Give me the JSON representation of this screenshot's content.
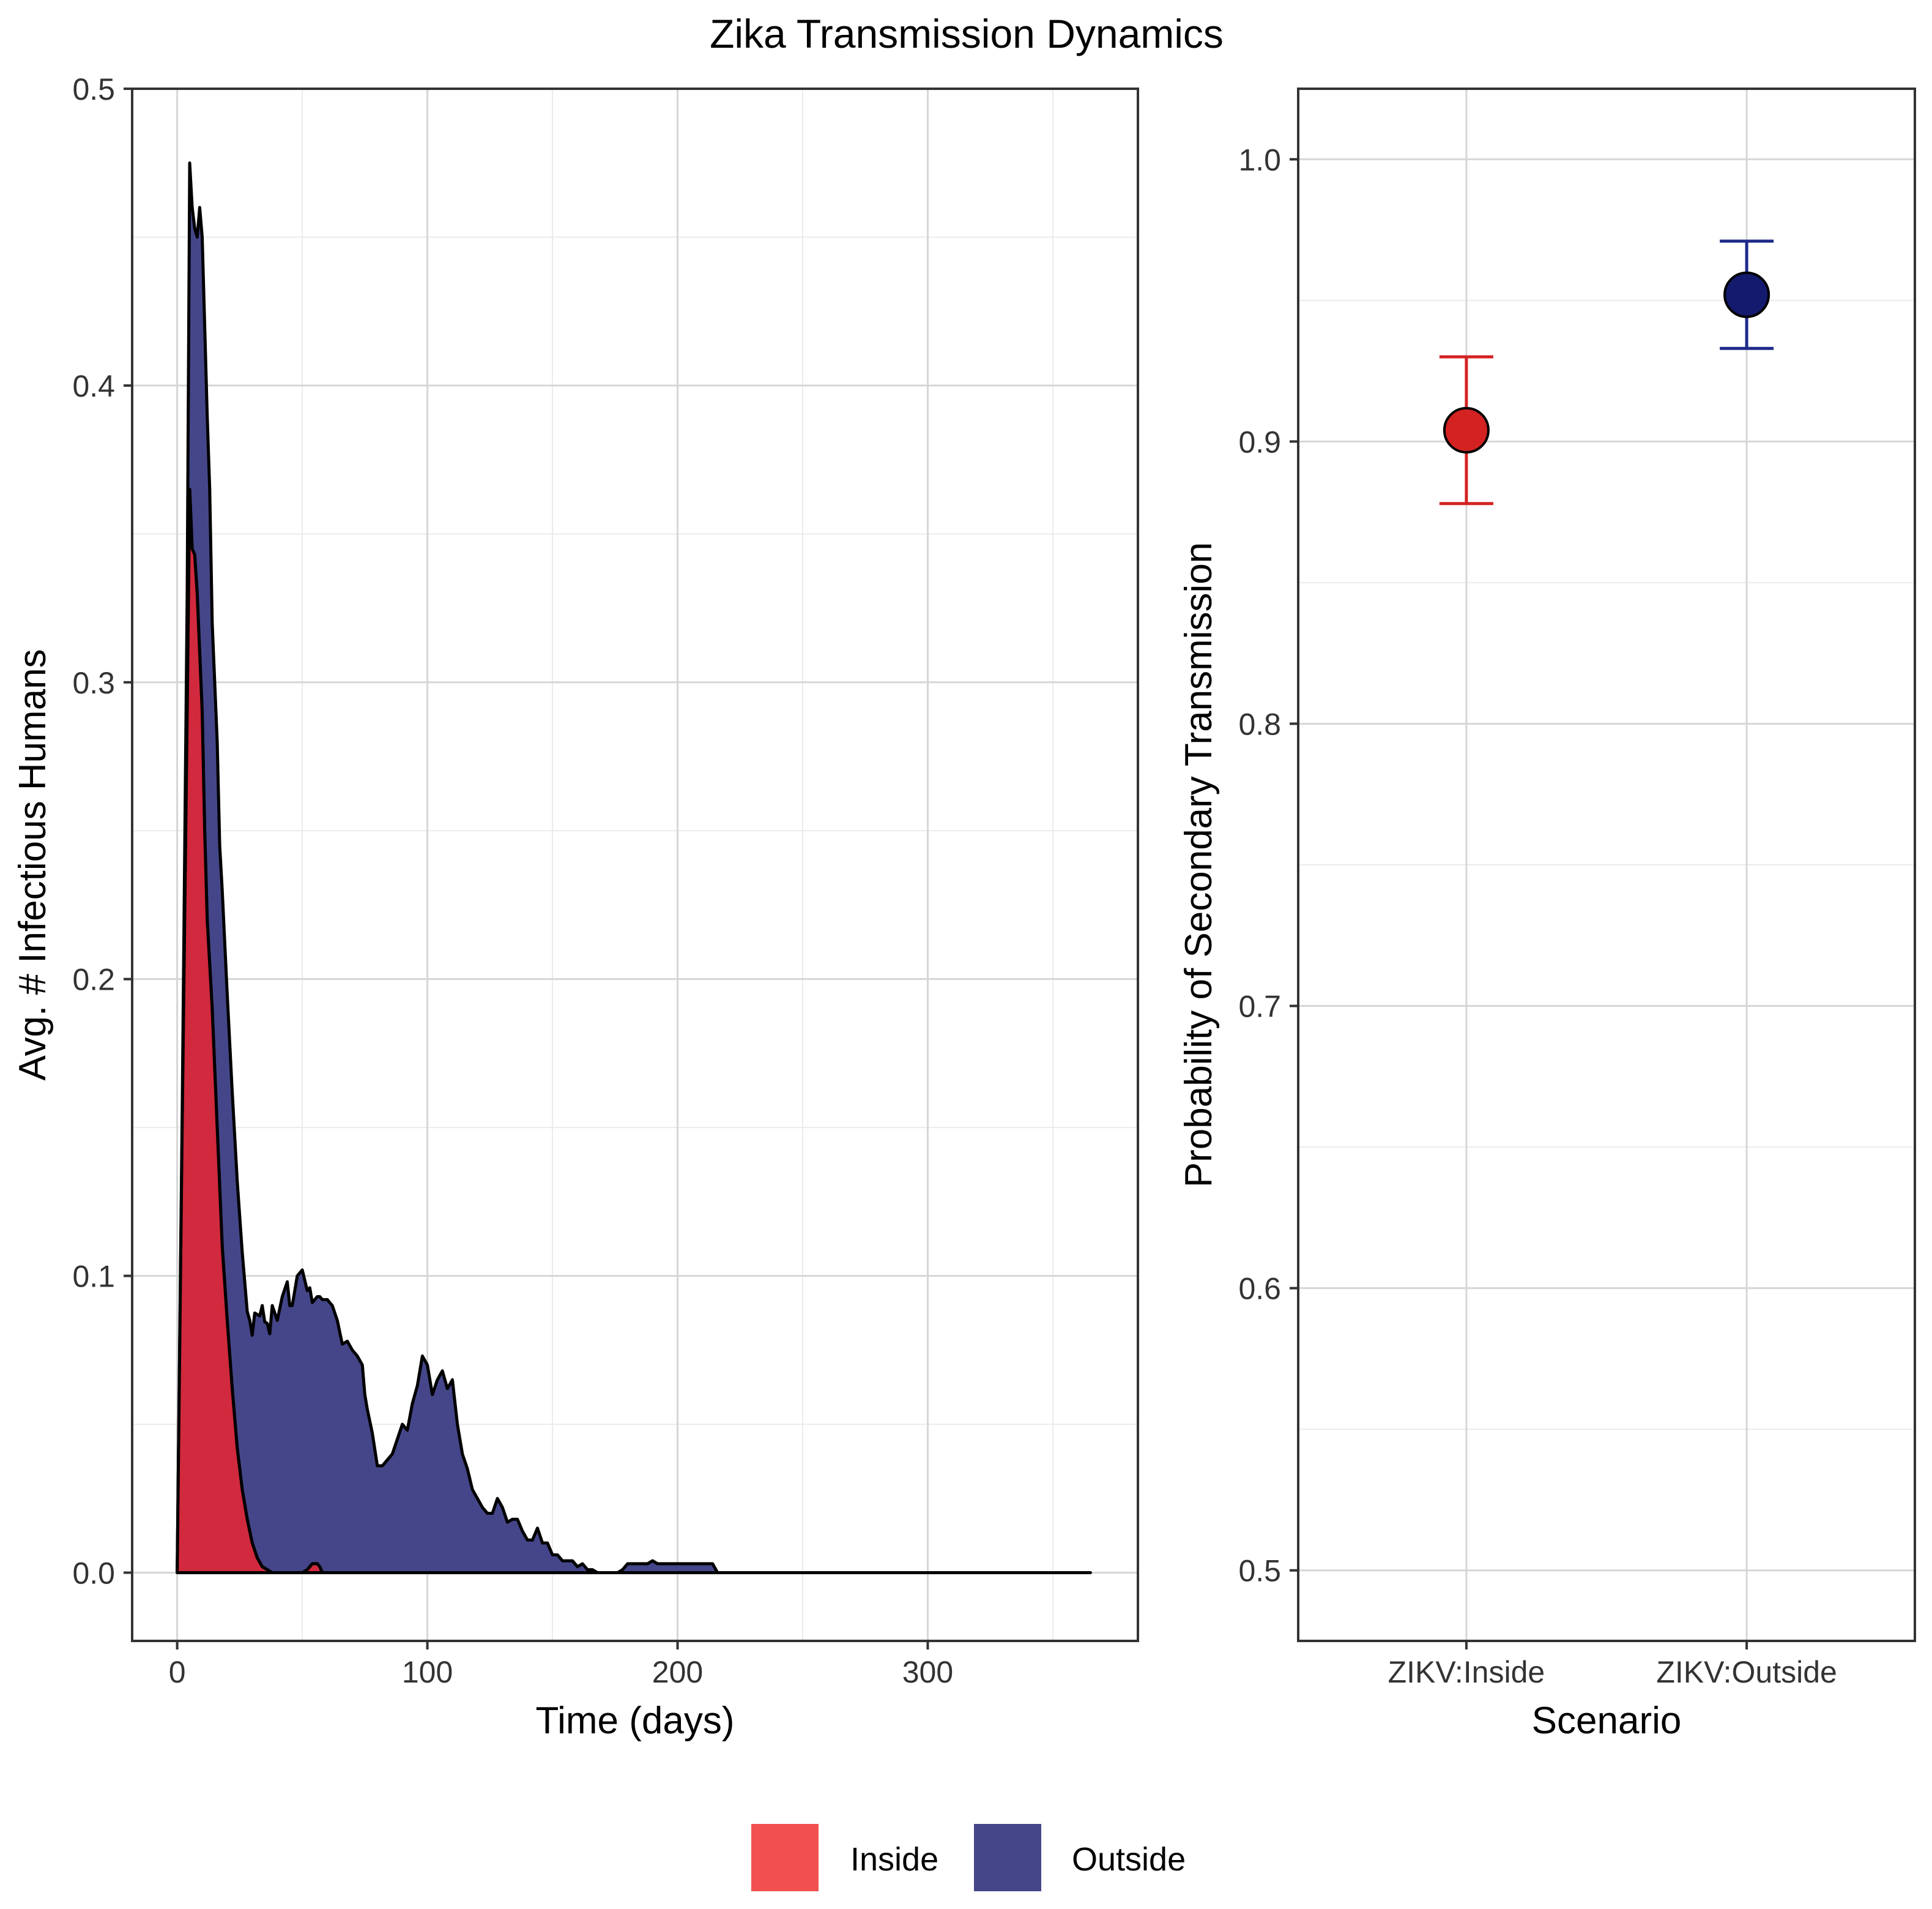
{
  "figure_title": "Zika Transmission Dynamics",
  "colors": {
    "inside": "#d1293d",
    "inside_legend": "#f25050",
    "outside": "#454689",
    "outside_legend": "#454689",
    "inside_point": "#d42222",
    "outside_point": "#141a6e",
    "inside_errorbar": "#d42222",
    "outside_errorbar": "#1f2a8a"
  },
  "legend": {
    "items": [
      {
        "label": "Inside",
        "color": "#f25050"
      },
      {
        "label": "Outside",
        "color": "#454689"
      }
    ]
  },
  "chart_data": [
    {
      "type": "area",
      "title": "",
      "xlabel": "Time (days)",
      "ylabel": "Avg. # Infectious Humans",
      "xlim": [
        -18,
        384
      ],
      "ylim": [
        -0.023,
        0.5
      ],
      "xticks": [
        0,
        100,
        200,
        300
      ],
      "yticks": [
        0.0,
        0.1,
        0.2,
        0.3,
        0.4,
        0.5
      ],
      "ytick_labels": [
        "0.0",
        "0.1",
        "0.2",
        "0.3",
        "0.4",
        "0.5"
      ],
      "stacked": true,
      "series": [
        {
          "name": "Inside",
          "x": [
            0,
            2,
            4,
            5,
            6,
            7,
            8,
            9,
            10,
            11,
            12,
            14,
            16,
            18,
            20,
            22,
            24,
            26,
            28,
            30,
            32,
            34,
            36,
            38,
            50,
            52,
            54,
            56,
            57,
            58,
            60,
            365
          ],
          "values": [
            0.0,
            0.15,
            0.29,
            0.365,
            0.345,
            0.343,
            0.33,
            0.31,
            0.29,
            0.25,
            0.22,
            0.19,
            0.15,
            0.11,
            0.085,
            0.062,
            0.042,
            0.028,
            0.018,
            0.01,
            0.005,
            0.002,
            0.001,
            0.0,
            0.0,
            0.001,
            0.003,
            0.003,
            0.002,
            0.0,
            0.0,
            0.0
          ]
        },
        {
          "name": "Outside",
          "x": [
            0,
            2,
            4,
            5,
            6,
            7,
            8,
            9,
            10,
            11,
            12,
            13,
            14,
            16,
            17,
            18,
            20,
            22,
            24,
            26,
            28,
            29,
            30,
            31,
            32,
            33,
            34,
            35,
            36,
            37,
            38,
            40,
            42,
            44,
            45,
            46,
            48,
            50,
            52,
            53,
            54,
            56,
            58,
            60,
            62,
            64,
            66,
            68,
            70,
            72,
            74,
            75,
            76,
            78,
            80,
            82,
            84,
            86,
            88,
            90,
            92,
            94,
            96,
            98,
            100,
            102,
            104,
            106,
            108,
            110,
            112,
            114,
            116,
            118,
            120,
            122,
            124,
            126,
            128,
            130,
            132,
            134,
            136,
            138,
            140,
            142,
            144,
            146,
            148,
            150,
            152,
            154,
            156,
            158,
            160,
            162,
            164,
            166,
            168,
            170,
            172,
            176,
            178,
            180,
            182,
            184,
            186,
            188,
            190,
            192,
            194,
            196,
            198,
            200,
            204,
            208,
            212,
            214,
            216,
            250,
            300,
            365
          ],
          "values": [
            0.0,
            0.005,
            0.04,
            0.11,
            0.115,
            0.11,
            0.12,
            0.15,
            0.16,
            0.17,
            0.17,
            0.16,
            0.13,
            0.13,
            0.115,
            0.12,
            0.11,
            0.1,
            0.09,
            0.08,
            0.07,
            0.071,
            0.07,
            0.08,
            0.082,
            0.083,
            0.088,
            0.083,
            0.083,
            0.08,
            0.09,
            0.085,
            0.093,
            0.098,
            0.09,
            0.09,
            0.1,
            0.102,
            0.094,
            0.094,
            0.088,
            0.09,
            0.092,
            0.092,
            0.09,
            0.085,
            0.077,
            0.078,
            0.075,
            0.073,
            0.07,
            0.06,
            0.055,
            0.047,
            0.036,
            0.036,
            0.038,
            0.04,
            0.045,
            0.05,
            0.048,
            0.057,
            0.063,
            0.073,
            0.07,
            0.06,
            0.065,
            0.068,
            0.062,
            0.065,
            0.05,
            0.04,
            0.035,
            0.028,
            0.025,
            0.022,
            0.02,
            0.02,
            0.025,
            0.022,
            0.017,
            0.018,
            0.018,
            0.014,
            0.011,
            0.011,
            0.015,
            0.01,
            0.01,
            0.006,
            0.006,
            0.004,
            0.004,
            0.004,
            0.002,
            0.003,
            0.001,
            0.001,
            0.0,
            0.0,
            0.0,
            0.0,
            0.001,
            0.003,
            0.003,
            0.003,
            0.003,
            0.003,
            0.004,
            0.003,
            0.003,
            0.003,
            0.003,
            0.003,
            0.003,
            0.003,
            0.003,
            0.003,
            0.0,
            0.0,
            0.0,
            0.0
          ]
        }
      ]
    },
    {
      "type": "scatter",
      "title": "",
      "xlabel": "Scenario",
      "ylabel": "Probability of Secondary Transmission",
      "categories": [
        "ZIKV:Inside",
        "ZIKV:Outside"
      ],
      "ylim": [
        0.475,
        1.025
      ],
      "yticks": [
        0.5,
        0.6,
        0.7,
        0.8,
        0.9,
        1.0
      ],
      "ytick_labels": [
        "0.5",
        "0.6",
        "0.7",
        "0.8",
        "0.9",
        "1.0"
      ],
      "series": [
        {
          "name": "ZIKV:Inside",
          "value": 0.904,
          "lower": 0.878,
          "upper": 0.93
        },
        {
          "name": "ZIKV:Outside",
          "value": 0.952,
          "lower": 0.933,
          "upper": 0.971
        }
      ]
    }
  ]
}
